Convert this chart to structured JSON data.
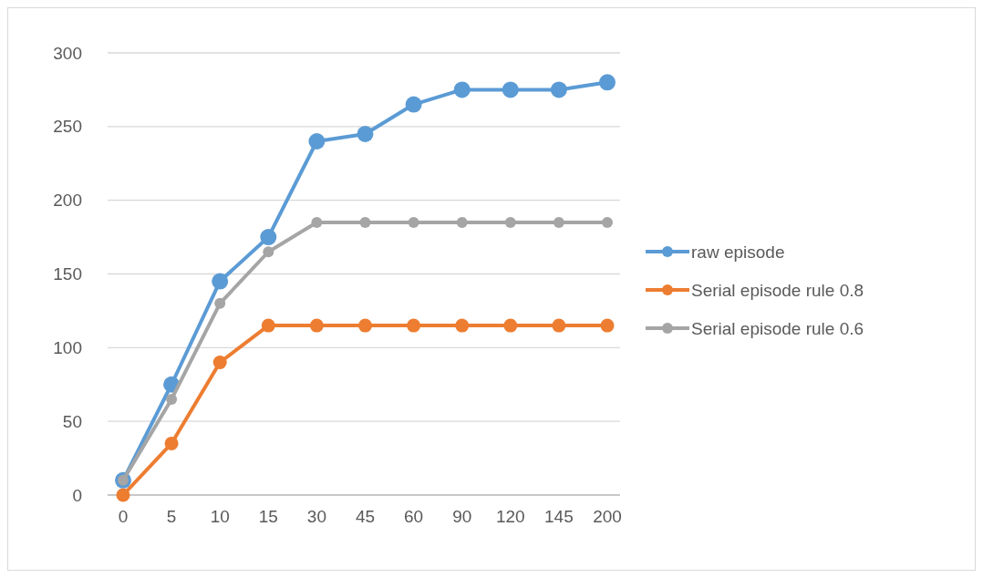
{
  "chart_data": {
    "type": "line",
    "categories": [
      "0",
      "5",
      "10",
      "15",
      "30",
      "45",
      "60",
      "90",
      "120",
      "145",
      "200"
    ],
    "series": [
      {
        "name": "raw episode",
        "color": "#5b9bd5",
        "values": [
          10,
          75,
          145,
          175,
          240,
          245,
          265,
          275,
          275,
          275,
          280
        ]
      },
      {
        "name": "Serial episode rule 0.8",
        "color": "#ed7d31",
        "values": [
          0,
          35,
          90,
          115,
          115,
          115,
          115,
          115,
          115,
          115,
          115
        ]
      },
      {
        "name": "Serial episode rule 0.6",
        "color": "#a5a5a5",
        "values": [
          10,
          65,
          130,
          165,
          185,
          185,
          185,
          185,
          185,
          185,
          185
        ]
      }
    ],
    "ylim": [
      0,
      300
    ],
    "yticks": [
      0,
      50,
      100,
      150,
      200,
      250,
      300
    ],
    "grid": "y",
    "legend": "right",
    "marker": "circle",
    "line_style": "solid"
  }
}
